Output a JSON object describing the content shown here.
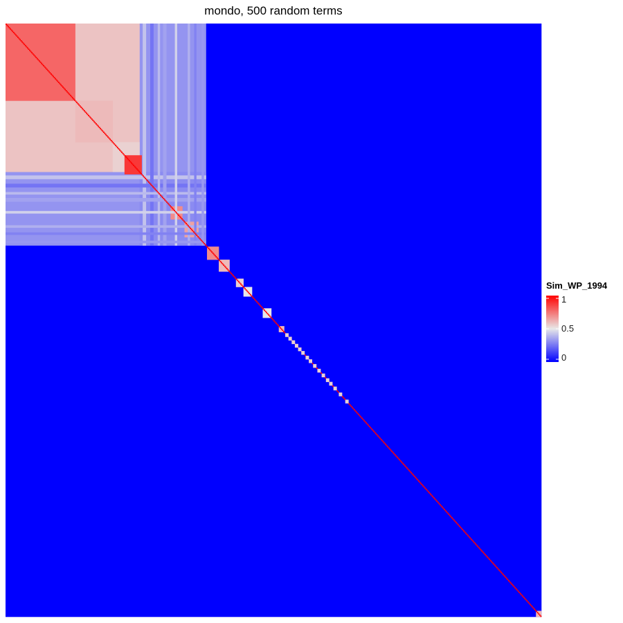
{
  "chart_data": {
    "type": "heatmap",
    "title": "mondo, 500 random terms",
    "xlabel": "",
    "ylabel": "",
    "n_terms": 500,
    "value_range": [
      0,
      1
    ],
    "diagonal_value": 1,
    "background_value": 0,
    "colorscale": {
      "low": "#0000FF",
      "mid": "#E8E8E8",
      "high": "#FF0000",
      "midpoint": 0.5
    },
    "legend": {
      "title": "Sim_WP_1994",
      "ticks": [
        "1",
        "0.5",
        "0"
      ],
      "tick_values": [
        1,
        0.5,
        0
      ],
      "position": "right"
    },
    "blocks": [
      {
        "start_term": 0,
        "end_term": 65,
        "value": 0.78
      },
      {
        "start_term": 65,
        "end_term": 100,
        "value": 0.6
      },
      {
        "start_term": 100,
        "end_term": 125,
        "value": 0.55
      },
      {
        "start_term": 0,
        "end_term": 125,
        "value_off_block": 0.58
      },
      {
        "start_term": 125,
        "end_term": 187,
        "value": 0.3
      },
      {
        "start_term": 111,
        "end_term": 127,
        "value": 0.88
      },
      {
        "start_term": 154,
        "end_term": 165,
        "value": 0.7
      },
      {
        "start_term": 167,
        "end_term": 180,
        "value": 0.65
      },
      {
        "start_term": 188,
        "end_term": 199,
        "value": 0.7
      },
      {
        "start_term": 199,
        "end_term": 209,
        "value": 0.6
      },
      {
        "start_term": 215,
        "end_term": 222,
        "value": 0.55
      },
      {
        "start_term": 222,
        "end_term": 230,
        "value": 0.5
      },
      {
        "start_term": 240,
        "end_term": 248,
        "value": 0.5
      },
      {
        "start_term": 255,
        "end_term": 260,
        "value": 0.6
      },
      {
        "start_term": 495,
        "end_term": 500,
        "value": 0.6
      }
    ]
  }
}
